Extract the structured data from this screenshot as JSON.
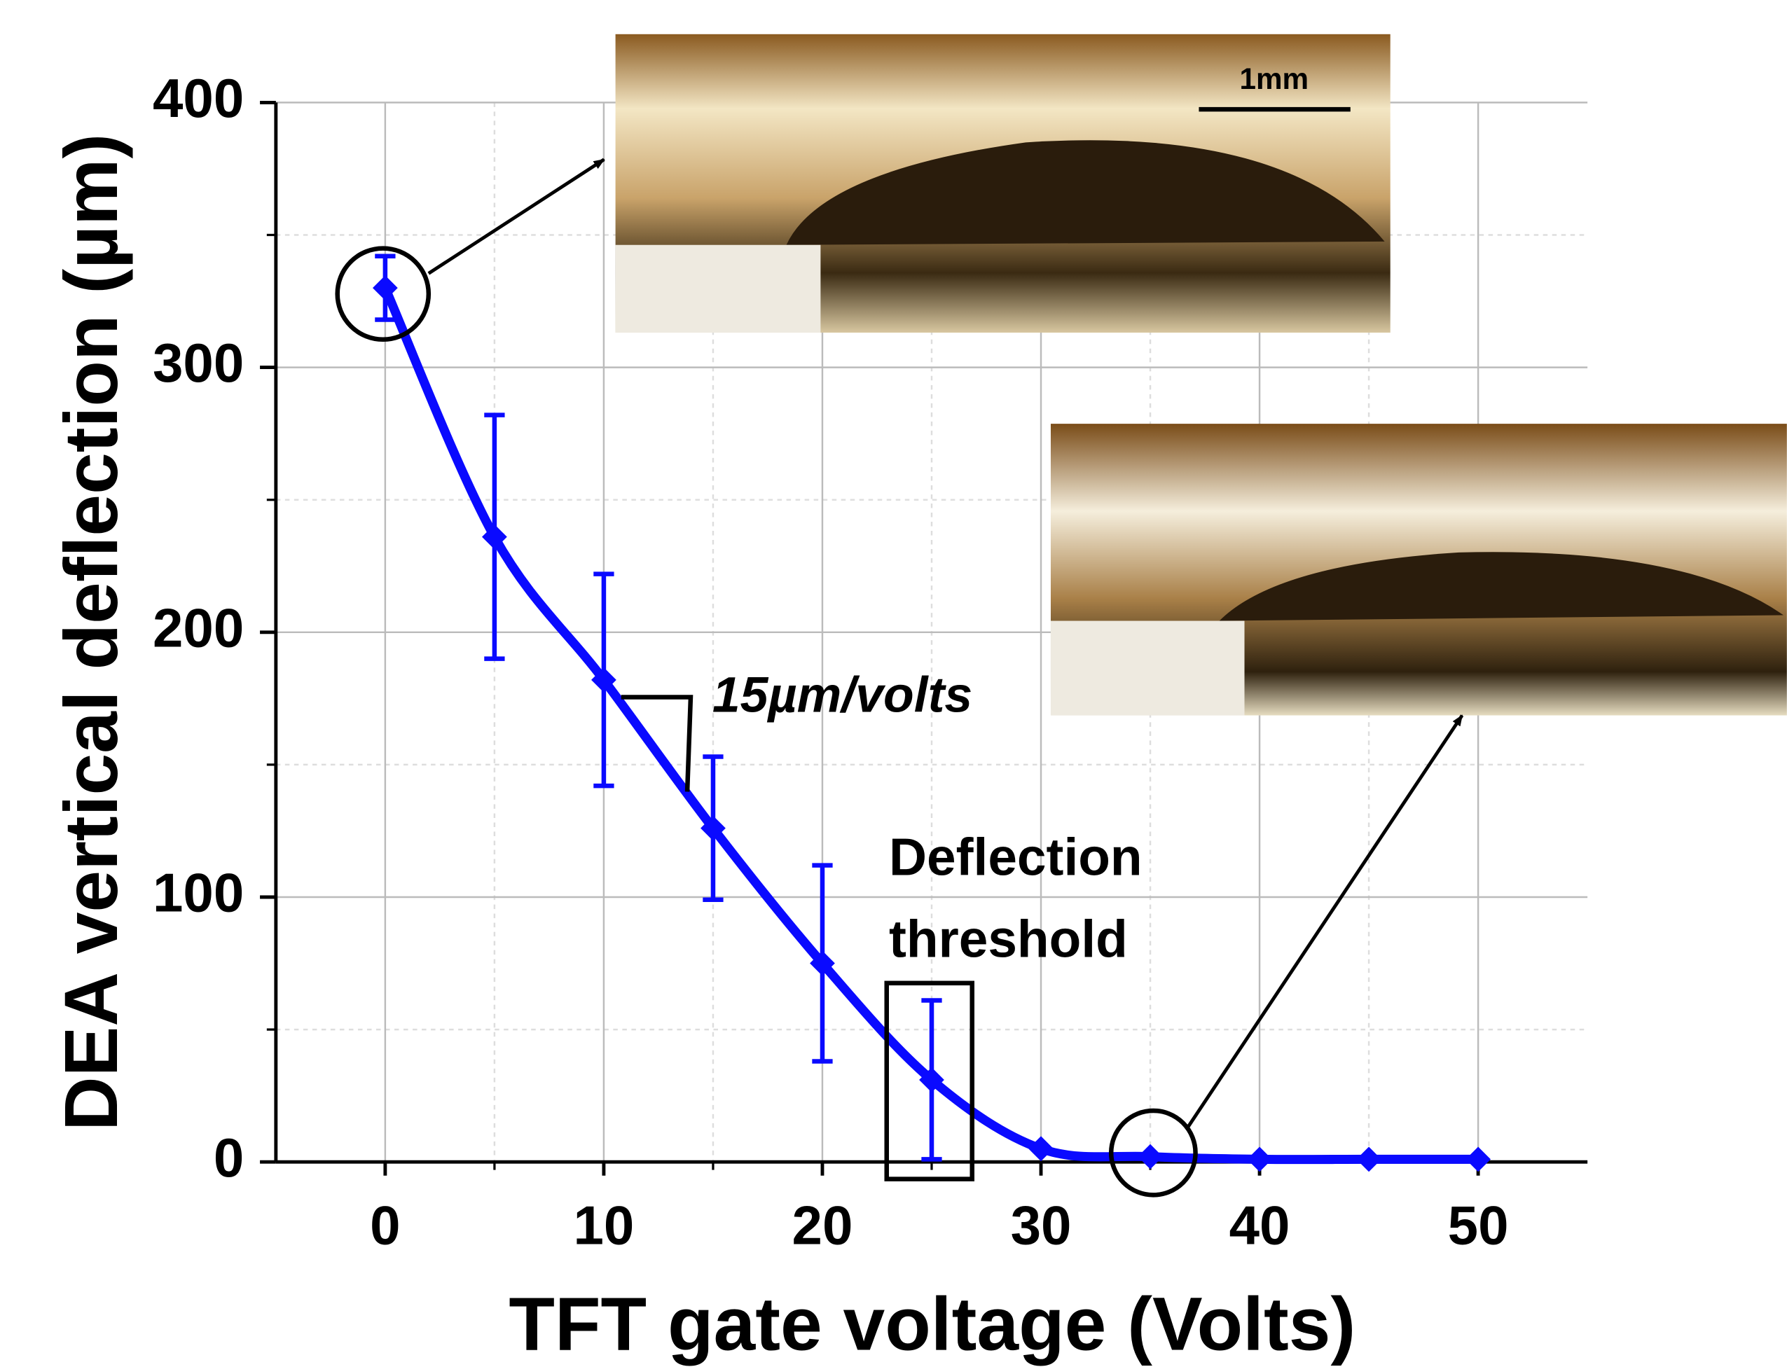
{
  "chart_data": {
    "type": "line",
    "x_label": "TFT gate voltage (Volts)",
    "y_label": "DEA vertical deflection (µm)",
    "x": [
      0,
      5,
      10,
      15,
      20,
      25,
      30,
      35,
      40,
      45,
      50
    ],
    "series": [
      {
        "color": "#0a0aff",
        "values": [
          330,
          236,
          182,
          126,
          75,
          31,
          5,
          2,
          1,
          1,
          1
        ],
        "errors": [
          12,
          46,
          40,
          27,
          37,
          30,
          0,
          0,
          0,
          0,
          0
        ]
      }
    ],
    "xlim": [
      -5,
      55
    ],
    "xticks": [
      0,
      10,
      20,
      30,
      40,
      50
    ],
    "ylim": [
      0,
      400
    ],
    "yticks": [
      0,
      100,
      200,
      300,
      400
    ],
    "grid": true,
    "annotations": {
      "slope": "15µm/volts",
      "threshold": [
        "Deflection",
        "threshold"
      ],
      "scale_bar": "1mm"
    }
  }
}
